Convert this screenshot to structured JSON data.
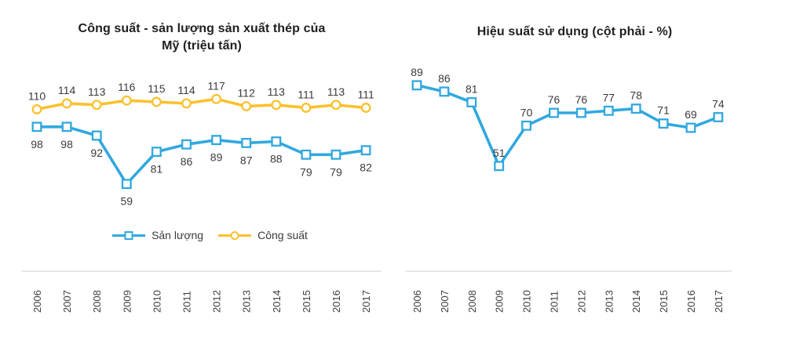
{
  "page": {
    "background": "#FFFFFF"
  },
  "legend": {
    "items": [
      {
        "label": "Sản lượng",
        "color": "#31A8DF",
        "marker": "square"
      },
      {
        "label": "Công suất",
        "color": "#FBC12D",
        "marker": "circle"
      }
    ]
  },
  "chart_data": [
    {
      "id": "capacity-output",
      "type": "line",
      "title": "Công suất - sản lượng sản xuất thép của Mỹ (triệu tấn)",
      "title_lines": [
        "Công suất - sản lượng sản xuất thép của",
        "Mỹ (triệu tấn)"
      ],
      "categories": [
        "2006",
        "2007",
        "2008",
        "2009",
        "2010",
        "2011",
        "2012",
        "2013",
        "2014",
        "2015",
        "2016",
        "2017"
      ],
      "series": [
        {
          "name": "Sản lượng",
          "color": "#31A8DF",
          "marker": "square",
          "label_position": "below",
          "values": [
            98,
            98,
            92,
            59,
            81,
            86,
            89,
            87,
            88,
            79,
            79,
            82
          ]
        },
        {
          "name": "Công suất",
          "color": "#FBC12D",
          "marker": "circle",
          "label_position": "above",
          "values": [
            110,
            114,
            113,
            116,
            115,
            114,
            117,
            112,
            113,
            111,
            113,
            111
          ]
        }
      ],
      "xlabel": "",
      "ylabel": "",
      "ylim": [
        0,
        130
      ],
      "grid": false,
      "legend_position": "bottom",
      "axis_color": "#D8D8D8",
      "label_color": "#3B3B3B"
    },
    {
      "id": "utilization",
      "type": "line",
      "title": "Hiệu suất sử dụng (cột phải - %)",
      "title_lines": [
        "Hiệu suất sử dụng (cột phải - %)"
      ],
      "categories": [
        "2006",
        "2007",
        "2008",
        "2009",
        "2010",
        "2011",
        "2012",
        "2013",
        "2014",
        "2015",
        "2016",
        "2017"
      ],
      "series": [
        {
          "name": "Hiệu suất sử dụng",
          "color": "#31A8DF",
          "marker": "square",
          "label_position": "above",
          "values": [
            89,
            86,
            81,
            51,
            70,
            76,
            76,
            77,
            78,
            71,
            69,
            74
          ]
        }
      ],
      "xlabel": "",
      "ylabel": "",
      "ylim": [
        0,
        100
      ],
      "grid": false,
      "legend_position": "none",
      "axis_color": "#D8D8D8",
      "label_color": "#3B3B3B"
    }
  ]
}
